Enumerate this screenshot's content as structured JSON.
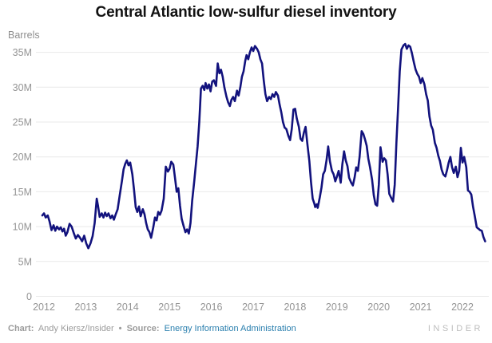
{
  "title": "Central Atlantic low-sulfur diesel inventory",
  "y_axis_title": "Barrels",
  "footer": {
    "chart_label": "Chart:",
    "chart_credit": "Andy Kiersz/Insider",
    "separator": "•",
    "source_label": "Source:",
    "source_link": "Energy Information Administration",
    "brand": "INSIDER"
  },
  "colors": {
    "line": "#12127d",
    "grid": "#e9e9e9",
    "axis_text": "#949494",
    "title_text": "#121212",
    "footer_text": "#9b9b9b",
    "link": "#2a7fae",
    "brand": "#bdbdbd",
    "background": "#ffffff"
  },
  "chart_data": {
    "type": "line",
    "title": "Central Atlantic low-sulfur diesel inventory",
    "xlabel": "",
    "ylabel": "Barrels",
    "unit_suffix": "M",
    "x_ticks": [
      2012,
      2013,
      2014,
      2015,
      2016,
      2017,
      2018,
      2019,
      2020,
      2021,
      2022
    ],
    "y_ticks": [
      0,
      5,
      10,
      15,
      20,
      25,
      30,
      35
    ],
    "y_tick_labels": [
      "0",
      "5M",
      "10M",
      "15M",
      "20M",
      "25M",
      "30M",
      "35M"
    ],
    "xlim": [
      2012,
      2022.7
    ],
    "ylim": [
      0,
      37
    ],
    "grid": "horizontal",
    "legend": "none",
    "series": [
      {
        "name": "Central Atlantic low-sulfur diesel inventory (barrels, millions)",
        "points": [
          [
            2012.0,
            11.6
          ],
          [
            2012.04,
            11.9
          ],
          [
            2012.08,
            11.3
          ],
          [
            2012.13,
            11.6
          ],
          [
            2012.17,
            10.8
          ],
          [
            2012.22,
            9.5
          ],
          [
            2012.27,
            10.2
          ],
          [
            2012.31,
            9.4
          ],
          [
            2012.35,
            10.0
          ],
          [
            2012.4,
            9.6
          ],
          [
            2012.44,
            9.9
          ],
          [
            2012.48,
            9.3
          ],
          [
            2012.52,
            9.7
          ],
          [
            2012.56,
            8.7
          ],
          [
            2012.6,
            9.2
          ],
          [
            2012.65,
            10.4
          ],
          [
            2012.7,
            10.0
          ],
          [
            2012.75,
            9.1
          ],
          [
            2012.8,
            8.3
          ],
          [
            2012.85,
            8.8
          ],
          [
            2012.9,
            8.4
          ],
          [
            2012.95,
            7.9
          ],
          [
            2013.0,
            8.7
          ],
          [
            2013.05,
            7.6
          ],
          [
            2013.1,
            6.9
          ],
          [
            2013.15,
            7.6
          ],
          [
            2013.2,
            8.6
          ],
          [
            2013.25,
            10.5
          ],
          [
            2013.3,
            14.0
          ],
          [
            2013.33,
            13.0
          ],
          [
            2013.37,
            11.4
          ],
          [
            2013.42,
            11.9
          ],
          [
            2013.46,
            11.3
          ],
          [
            2013.5,
            12.0
          ],
          [
            2013.54,
            11.5
          ],
          [
            2013.58,
            11.9
          ],
          [
            2013.63,
            11.2
          ],
          [
            2013.67,
            11.6
          ],
          [
            2013.71,
            11.0
          ],
          [
            2013.75,
            11.7
          ],
          [
            2013.8,
            12.5
          ],
          [
            2013.85,
            14.5
          ],
          [
            2013.9,
            16.5
          ],
          [
            2013.94,
            18.2
          ],
          [
            2013.98,
            19.0
          ],
          [
            2014.02,
            19.5
          ],
          [
            2014.06,
            18.8
          ],
          [
            2014.1,
            19.2
          ],
          [
            2014.15,
            17.5
          ],
          [
            2014.19,
            15.3
          ],
          [
            2014.23,
            12.8
          ],
          [
            2014.27,
            12.1
          ],
          [
            2014.31,
            12.9
          ],
          [
            2014.35,
            11.5
          ],
          [
            2014.4,
            12.5
          ],
          [
            2014.44,
            11.8
          ],
          [
            2014.48,
            10.5
          ],
          [
            2014.52,
            9.6
          ],
          [
            2014.56,
            9.2
          ],
          [
            2014.6,
            8.4
          ],
          [
            2014.65,
            9.9
          ],
          [
            2014.69,
            11.3
          ],
          [
            2014.73,
            10.9
          ],
          [
            2014.77,
            12.1
          ],
          [
            2014.81,
            11.7
          ],
          [
            2014.85,
            12.3
          ],
          [
            2014.9,
            14.0
          ],
          [
            2014.95,
            18.6
          ],
          [
            2015.0,
            17.9
          ],
          [
            2015.04,
            18.3
          ],
          [
            2015.08,
            19.3
          ],
          [
            2015.13,
            18.9
          ],
          [
            2015.17,
            17.0
          ],
          [
            2015.21,
            15.0
          ],
          [
            2015.25,
            15.5
          ],
          [
            2015.29,
            13.0
          ],
          [
            2015.33,
            11.1
          ],
          [
            2015.38,
            10.0
          ],
          [
            2015.42,
            9.2
          ],
          [
            2015.46,
            9.6
          ],
          [
            2015.5,
            9.0
          ],
          [
            2015.54,
            10.5
          ],
          [
            2015.58,
            13.7
          ],
          [
            2015.63,
            16.5
          ],
          [
            2015.67,
            19.0
          ],
          [
            2015.71,
            21.5
          ],
          [
            2015.75,
            25.0
          ],
          [
            2015.79,
            29.8
          ],
          [
            2015.83,
            30.2
          ],
          [
            2015.87,
            29.6
          ],
          [
            2015.9,
            30.6
          ],
          [
            2015.94,
            29.8
          ],
          [
            2015.98,
            30.4
          ],
          [
            2016.02,
            29.4
          ],
          [
            2016.06,
            30.8
          ],
          [
            2016.1,
            31.0
          ],
          [
            2016.15,
            30.2
          ],
          [
            2016.19,
            33.4
          ],
          [
            2016.23,
            32.0
          ],
          [
            2016.27,
            32.5
          ],
          [
            2016.31,
            31.5
          ],
          [
            2016.35,
            30.0
          ],
          [
            2016.4,
            28.6
          ],
          [
            2016.44,
            27.8
          ],
          [
            2016.48,
            27.3
          ],
          [
            2016.52,
            28.2
          ],
          [
            2016.56,
            28.6
          ],
          [
            2016.6,
            28.0
          ],
          [
            2016.65,
            29.5
          ],
          [
            2016.69,
            28.8
          ],
          [
            2016.73,
            30.0
          ],
          [
            2016.77,
            31.5
          ],
          [
            2016.81,
            32.3
          ],
          [
            2016.85,
            33.8
          ],
          [
            2016.88,
            34.6
          ],
          [
            2016.92,
            34.0
          ],
          [
            2016.96,
            35.0
          ],
          [
            2017.0,
            35.7
          ],
          [
            2017.04,
            35.2
          ],
          [
            2017.08,
            35.9
          ],
          [
            2017.13,
            35.5
          ],
          [
            2017.17,
            35.0
          ],
          [
            2017.21,
            34.0
          ],
          [
            2017.25,
            33.4
          ],
          [
            2017.29,
            31.0
          ],
          [
            2017.33,
            29.0
          ],
          [
            2017.37,
            28.0
          ],
          [
            2017.42,
            28.6
          ],
          [
            2017.46,
            28.3
          ],
          [
            2017.5,
            29.0
          ],
          [
            2017.54,
            28.6
          ],
          [
            2017.58,
            29.3
          ],
          [
            2017.63,
            28.8
          ],
          [
            2017.67,
            27.5
          ],
          [
            2017.71,
            26.4
          ],
          [
            2017.75,
            25.0
          ],
          [
            2017.79,
            24.2
          ],
          [
            2017.83,
            24.0
          ],
          [
            2017.88,
            23.0
          ],
          [
            2017.92,
            22.4
          ],
          [
            2017.96,
            24.0
          ],
          [
            2018.0,
            26.8
          ],
          [
            2018.04,
            26.9
          ],
          [
            2018.08,
            25.5
          ],
          [
            2018.13,
            24.3
          ],
          [
            2018.17,
            22.6
          ],
          [
            2018.21,
            22.3
          ],
          [
            2018.25,
            23.5
          ],
          [
            2018.29,
            24.3
          ],
          [
            2018.33,
            22.0
          ],
          [
            2018.38,
            19.4
          ],
          [
            2018.42,
            16.4
          ],
          [
            2018.46,
            14.0
          ],
          [
            2018.5,
            13.3
          ],
          [
            2018.52,
            12.8
          ],
          [
            2018.56,
            13.2
          ],
          [
            2018.58,
            12.7
          ],
          [
            2018.63,
            14.2
          ],
          [
            2018.67,
            15.6
          ],
          [
            2018.71,
            17.5
          ],
          [
            2018.75,
            18.0
          ],
          [
            2018.79,
            19.5
          ],
          [
            2018.83,
            21.5
          ],
          [
            2018.87,
            19.4
          ],
          [
            2018.92,
            18.0
          ],
          [
            2018.96,
            17.5
          ],
          [
            2019.0,
            16.5
          ],
          [
            2019.04,
            17.2
          ],
          [
            2019.08,
            18.0
          ],
          [
            2019.13,
            16.3
          ],
          [
            2019.17,
            19.0
          ],
          [
            2019.21,
            20.8
          ],
          [
            2019.25,
            19.5
          ],
          [
            2019.29,
            18.7
          ],
          [
            2019.33,
            17.0
          ],
          [
            2019.38,
            16.3
          ],
          [
            2019.42,
            15.9
          ],
          [
            2019.46,
            17.0
          ],
          [
            2019.5,
            18.5
          ],
          [
            2019.54,
            18.0
          ],
          [
            2019.58,
            20.0
          ],
          [
            2019.63,
            23.7
          ],
          [
            2019.67,
            23.3
          ],
          [
            2019.71,
            22.5
          ],
          [
            2019.75,
            21.6
          ],
          [
            2019.79,
            19.7
          ],
          [
            2019.83,
            18.5
          ],
          [
            2019.88,
            16.7
          ],
          [
            2019.92,
            14.5
          ],
          [
            2019.96,
            13.2
          ],
          [
            2020.0,
            13.0
          ],
          [
            2020.04,
            16.0
          ],
          [
            2020.08,
            21.4
          ],
          [
            2020.13,
            19.3
          ],
          [
            2020.17,
            19.8
          ],
          [
            2020.21,
            19.5
          ],
          [
            2020.25,
            17.5
          ],
          [
            2020.29,
            14.7
          ],
          [
            2020.33,
            14.2
          ],
          [
            2020.38,
            13.6
          ],
          [
            2020.42,
            16.0
          ],
          [
            2020.46,
            22.0
          ],
          [
            2020.5,
            27.0
          ],
          [
            2020.54,
            32.3
          ],
          [
            2020.58,
            35.4
          ],
          [
            2020.63,
            36.0
          ],
          [
            2020.67,
            36.2
          ],
          [
            2020.71,
            35.5
          ],
          [
            2020.75,
            36.0
          ],
          [
            2020.79,
            35.8
          ],
          [
            2020.83,
            34.9
          ],
          [
            2020.88,
            33.5
          ],
          [
            2020.92,
            32.5
          ],
          [
            2020.96,
            31.9
          ],
          [
            2021.0,
            31.5
          ],
          [
            2021.04,
            30.6
          ],
          [
            2021.08,
            31.3
          ],
          [
            2021.13,
            30.4
          ],
          [
            2021.17,
            29.0
          ],
          [
            2021.21,
            28.1
          ],
          [
            2021.25,
            25.8
          ],
          [
            2021.29,
            24.5
          ],
          [
            2021.33,
            23.9
          ],
          [
            2021.38,
            22.0
          ],
          [
            2021.42,
            21.3
          ],
          [
            2021.46,
            20.2
          ],
          [
            2021.5,
            19.4
          ],
          [
            2021.54,
            18.2
          ],
          [
            2021.58,
            17.5
          ],
          [
            2021.63,
            17.2
          ],
          [
            2021.67,
            18.1
          ],
          [
            2021.71,
            19.2
          ],
          [
            2021.75,
            20.0
          ],
          [
            2021.79,
            18.5
          ],
          [
            2021.83,
            17.7
          ],
          [
            2021.88,
            18.6
          ],
          [
            2021.92,
            17.1
          ],
          [
            2021.96,
            18.0
          ],
          [
            2022.0,
            21.3
          ],
          [
            2022.04,
            19.2
          ],
          [
            2022.08,
            20.0
          ],
          [
            2022.13,
            18.5
          ],
          [
            2022.17,
            15.2
          ],
          [
            2022.21,
            15.0
          ],
          [
            2022.25,
            14.6
          ],
          [
            2022.29,
            12.9
          ],
          [
            2022.33,
            11.6
          ],
          [
            2022.38,
            9.9
          ],
          [
            2022.42,
            9.7
          ],
          [
            2022.46,
            9.5
          ],
          [
            2022.5,
            9.4
          ],
          [
            2022.54,
            8.5
          ],
          [
            2022.58,
            7.9
          ]
        ]
      }
    ]
  }
}
